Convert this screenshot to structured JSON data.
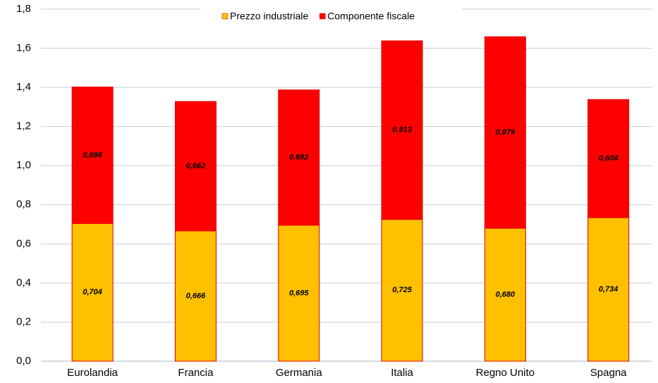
{
  "chart_data": {
    "type": "stacked_bar",
    "categories": [
      "Eurolandia",
      "Francia",
      "Germania",
      "Italia",
      "Regno Unito",
      "Spagna"
    ],
    "series": [
      {
        "name": "Prezzo industriale",
        "color": "#ffc000",
        "values": [
          0.704,
          0.666,
          0.695,
          0.725,
          0.68,
          0.734
        ],
        "value_labels": [
          "0,704",
          "0,666",
          "0,695",
          "0,725",
          "0,680",
          "0,734"
        ]
      },
      {
        "name": "Componente fiscale",
        "color": "#ff0000",
        "values": [
          0.698,
          0.662,
          0.692,
          0.913,
          0.979,
          0.604
        ],
        "value_labels": [
          "0,698",
          "0,662",
          "0,692",
          "0,913",
          "0,979",
          "0,604"
        ]
      }
    ],
    "ylim": [
      0,
      1.8
    ],
    "yticks": [
      {
        "value": 0,
        "label": "0,0"
      },
      {
        "value": 0.2,
        "label": "0,2"
      },
      {
        "value": 0.4,
        "label": "0,4"
      },
      {
        "value": 0.6,
        "label": "0,6"
      },
      {
        "value": 0.8,
        "label": "0,8"
      },
      {
        "value": 1.0,
        "label": "1,0"
      },
      {
        "value": 1.2,
        "label": "1,2"
      },
      {
        "value": 1.4,
        "label": "1,4"
      },
      {
        "value": 1.6,
        "label": "1,6"
      },
      {
        "value": 1.8,
        "label": "1,8"
      }
    ],
    "grid": true,
    "legend": "top"
  }
}
